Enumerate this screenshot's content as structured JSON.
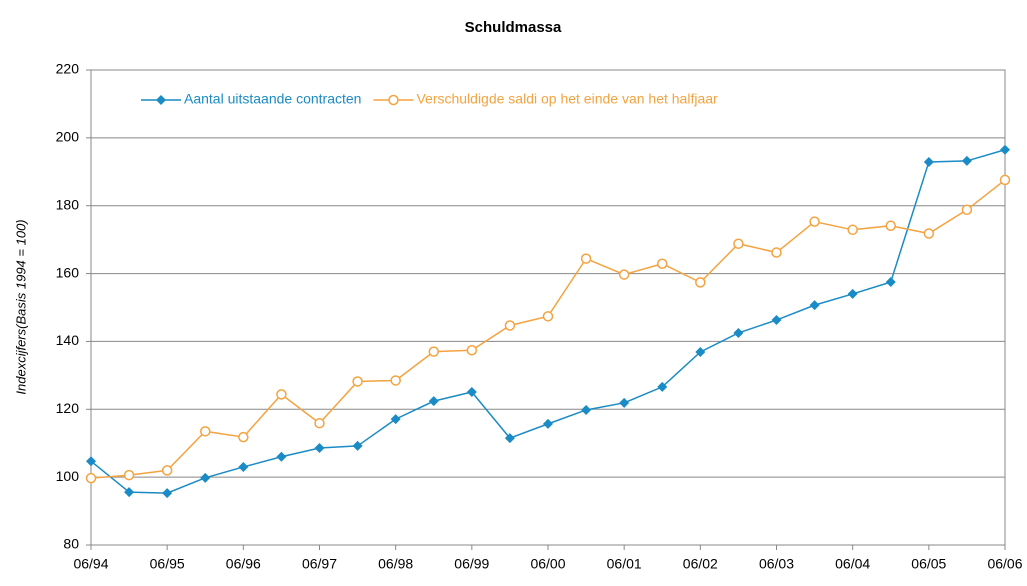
{
  "chart_data": {
    "type": "line",
    "title": "Schuldmassa",
    "y_label": "Indexcijfers(Basis 1994 = 100)",
    "categories": [
      "06/94",
      null,
      "06/95",
      null,
      "06/96",
      null,
      "06/97",
      null,
      "06/98",
      null,
      "06/99",
      null,
      "06/00",
      null,
      "06/01",
      null,
      "06/02",
      null,
      "06/03",
      null,
      "06/04",
      null,
      "06/05",
      null,
      "06/06"
    ],
    "series": [
      {
        "name": "Aantal uitstaande contracten",
        "color": "#1a8bc4",
        "marker": "diamond",
        "values": [
          104.7,
          95.6,
          95.3,
          99.8,
          103,
          106,
          108.6,
          109.2,
          117.1,
          122.4,
          125.1,
          111.5,
          115.7,
          119.8,
          121.9,
          126.6,
          136.9,
          142.5,
          146.3,
          150.7,
          154,
          157.5,
          192.9,
          193.2,
          196.5
        ]
      },
      {
        "name": "Verschuldigde saldi op het einde van het halfjaar",
        "color": "#f4a340",
        "marker": "circle",
        "values": [
          99.7,
          100.6,
          102,
          113.5,
          111.8,
          124.4,
          115.9,
          128.2,
          128.5,
          137,
          137.4,
          144.7,
          147.4,
          164.4,
          159.7,
          162.9,
          157.4,
          168.8,
          166.2,
          175.3,
          172.9,
          174.1,
          171.8,
          178.8,
          187.6
        ]
      }
    ],
    "ylim": [
      80,
      220
    ],
    "yticks": [
      80,
      100,
      120,
      140,
      160,
      180,
      200,
      220
    ],
    "grid": true,
    "legend": "top-left"
  }
}
